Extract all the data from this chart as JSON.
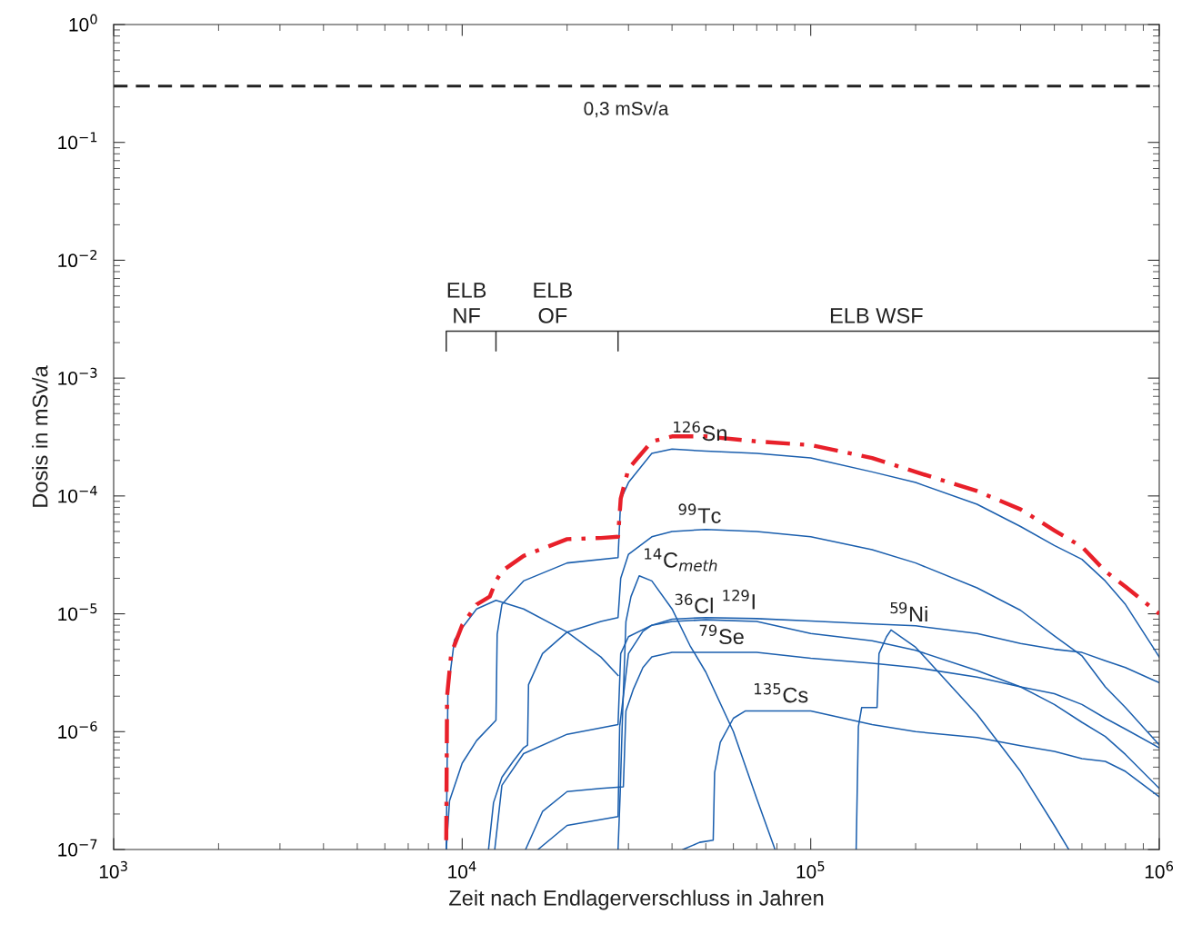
{
  "chart_data": {
    "type": "line",
    "xlabel": "Zeit nach Endlagerverschluss in Jahren",
    "ylabel": "Dosis in mSv/a",
    "log": "xy",
    "grid": false,
    "legend": false,
    "xlim": [
      1000,
      1000000
    ],
    "xticks": [
      {
        "value": 1000,
        "label": "10$^{3}$"
      },
      {
        "value": 10000,
        "label": "10$^{4}$"
      },
      {
        "value": 100000,
        "label": "10$^{5}$"
      },
      {
        "value": 1000000,
        "label": "10$^{6}$"
      }
    ],
    "ylim": [
      1e-07,
      1
    ],
    "yticks": [
      {
        "value": 1e-07,
        "label": "10$^{−7}$"
      },
      {
        "value": 1e-06,
        "label": "10$^{−6}$"
      },
      {
        "value": 1e-05,
        "label": "10$^{−5}$"
      },
      {
        "value": 0.0001,
        "label": "10$^{−4}$"
      },
      {
        "value": 0.001,
        "label": "10$^{−3}$"
      },
      {
        "value": 0.01,
        "label": "10$^{−2}$"
      },
      {
        "value": 0.1,
        "label": "10$^{−1}$"
      },
      {
        "value": 1,
        "label": "10$^{0}$"
      }
    ],
    "ref_lines": [
      {
        "axis": "y",
        "value": 0.3,
        "label": "0,3 mSv/a",
        "color": "#222222",
        "line_style": "dashed"
      }
    ],
    "annotations": [
      {
        "text": "ELB\nNF",
        "x": 9000,
        "y": 0.0025
      },
      {
        "text": "ELB\nOF",
        "x": 15900,
        "y": 0.0025
      },
      {
        "text": "ELB WSF",
        "x": 113000,
        "y": 0.0025
      },
      {
        "text": "$^{126}$Sn",
        "x": 40000,
        "y": 0.00025
      },
      {
        "text": "$^{99}$Tc",
        "x": 41500,
        "y": 5e-05
      },
      {
        "text": "$^{14}$C$_{meth}$",
        "x": 33000,
        "y": 2.1e-05
      },
      {
        "text": "$^{36}$Cl",
        "x": 40500,
        "y": 8.6e-06
      },
      {
        "text": "$^{129}$I",
        "x": 55400,
        "y": 9.3e-06
      },
      {
        "text": "$^{79}$Se",
        "x": 47600,
        "y": 4.7e-06
      },
      {
        "text": "$^{135}$Cs",
        "x": 68200,
        "y": 1.5e-06
      },
      {
        "text": "$^{59}$Ni",
        "x": 168000,
        "y": 7.3e-06
      }
    ],
    "series": [
      {
        "color": "#333333",
        "x": [
          9000,
          9000,
          12500,
          12500,
          12500,
          28000,
          28000,
          28000,
          1000000
        ],
        "values": [
          0.0017,
          0.0025,
          0.0025,
          0.0017,
          0.0025,
          0.0025,
          0.0017,
          0.0025,
          0.0025
        ]
      },
      {
        "color": "#1b5fae",
        "x": [
          9000,
          9100,
          9500,
          10000,
          11000,
          12500,
          15000,
          20000,
          25000,
          28000
        ],
        "values": [
          1e-07,
          2.2e-06,
          6e-06,
          7.6e-06,
          1.1e-05,
          1.3e-05,
          1.1e-05,
          7e-06,
          4.3e-06,
          3e-06
        ]
      },
      {
        "color": "#1b5fae",
        "x": [
          9000,
          9200,
          10000,
          11000,
          12500,
          12600,
          13000,
          15000,
          20000,
          28000,
          28500,
          30000,
          35000,
          40000,
          50000,
          70000,
          100000,
          150000,
          200000,
          300000,
          400000,
          500000,
          600000,
          700000,
          800000,
          1000000
        ],
        "values": [
          1e-07,
          2.6e-07,
          5.4e-07,
          8.4e-07,
          1.25e-06,
          6.7e-06,
          1.2e-05,
          1.9e-05,
          2.7e-05,
          3e-05,
          9.3e-05,
          0.00013,
          0.00023,
          0.00025,
          0.00024,
          0.00023,
          0.00021,
          0.00016,
          0.00013,
          8.5e-05,
          5.5e-05,
          3.8e-05,
          2.9e-05,
          1.9e-05,
          1.2e-05,
          4.3e-06
        ]
      },
      {
        "color": "#1b5fae",
        "x": [
          11900,
          12300,
          13000,
          14000,
          15000,
          15400,
          15500,
          17000,
          20000,
          25000,
          28000,
          28500,
          30000,
          35000,
          40000,
          50000,
          70000,
          100000,
          150000,
          200000,
          300000,
          400000,
          500000,
          600000,
          700000,
          800000,
          1000000
        ],
        "values": [
          1e-07,
          2.5e-07,
          4.1e-07,
          5.6e-07,
          7.3e-07,
          7.7e-07,
          2.5e-06,
          4.6e-06,
          7e-06,
          8.6e-06,
          9.3e-06,
          2e-05,
          3.2e-05,
          4.5e-05,
          5e-05,
          5.2e-05,
          5e-05,
          4.5e-05,
          3.5e-05,
          2.7e-05,
          1.66e-05,
          1.07e-05,
          6.5e-06,
          4.4e-06,
          2.4e-06,
          1.6e-06,
          7.7e-07
        ]
      },
      {
        "color": "#1b5fae",
        "x": [
          28000,
          28400,
          28800,
          29500,
          30500,
          32200,
          35000,
          40000,
          45000,
          50000,
          60000,
          70000,
          79000
        ],
        "values": [
          1e-07,
          3e-07,
          1.2e-06,
          8.6e-06,
          1.4e-05,
          2.1e-05,
          1.9e-05,
          1.1e-05,
          5.4e-06,
          3.2e-06,
          1e-06,
          2.7e-07,
          1e-07
        ]
      },
      {
        "color": "#1b5fae",
        "x": [
          12400,
          13000,
          15000,
          20000,
          28000,
          28500,
          30000,
          35000,
          40000,
          50000,
          70000,
          100000,
          150000,
          200000,
          300000,
          400000,
          500000,
          600000,
          700000,
          800000,
          1000000
        ],
        "values": [
          1e-07,
          3.5e-07,
          6.5e-07,
          9.5e-07,
          1.15e-06,
          4.6e-06,
          6.4e-06,
          8e-06,
          8.6e-06,
          8.9e-06,
          8.6e-06,
          6.8e-06,
          5.9e-06,
          4.9e-06,
          3.3e-06,
          2.4e-06,
          1.7e-06,
          1.2e-06,
          9.1e-07,
          6.4e-07,
          3.3e-07
        ]
      },
      {
        "color": "#1b5fae",
        "x": [
          16500,
          20000,
          28000,
          28300,
          30000,
          33000,
          35000,
          40000,
          50000,
          70000,
          100000,
          150000,
          200000,
          300000,
          400000,
          500000,
          600000,
          700000,
          800000,
          1000000
        ],
        "values": [
          1e-07,
          1.6e-07,
          1.9e-07,
          1.1e-06,
          4.6e-06,
          7.1e-06,
          8e-06,
          9e-06,
          9.3e-06,
          9.1e-06,
          8.7e-06,
          8.2e-06,
          7.9e-06,
          6.8e-06,
          5.6e-06,
          5e-06,
          4.7e-06,
          4e-06,
          3.5e-06,
          2.6e-06
        ]
      },
      {
        "color": "#1b5fae",
        "x": [
          15200,
          17000,
          20000,
          25000,
          29000,
          29500,
          31000,
          33000,
          35000,
          40000,
          50000,
          70000,
          100000,
          150000,
          200000,
          300000,
          400000,
          500000,
          600000,
          700000,
          800000,
          1000000
        ],
        "values": [
          1e-07,
          2.1e-07,
          3.1e-07,
          3.3e-07,
          3.4e-07,
          1.5e-06,
          2.3e-06,
          3.5e-06,
          4.3e-06,
          4.7e-06,
          4.7e-06,
          4.7e-06,
          4.2e-06,
          3.8e-06,
          3.5e-06,
          2.9e-06,
          2.4e-06,
          2.1e-06,
          1.7e-06,
          1.3e-06,
          1.05e-06,
          7.3e-07
        ]
      },
      {
        "color": "#1b5fae",
        "x": [
          43000,
          48000,
          52500,
          53000,
          55000,
          60000,
          65000,
          100000,
          150000,
          200000,
          300000,
          400000,
          500000,
          600000,
          700000,
          800000,
          1000000
        ],
        "values": [
          1e-07,
          1.15e-07,
          1.2e-07,
          4.5e-07,
          8.1e-07,
          1.3e-06,
          1.5e-06,
          1.5e-06,
          1.15e-06,
          1e-06,
          8.9e-07,
          7.6e-07,
          6.8e-07,
          5.9e-07,
          5.6e-07,
          4.6e-07,
          2.8e-07
        ]
      },
      {
        "color": "#1b5fae",
        "x": [
          135000,
          137000,
          140000,
          150000,
          155000,
          157000,
          165000,
          170000,
          200000,
          300000,
          400000,
          500000,
          550000
        ],
        "values": [
          1e-07,
          1.1e-06,
          1.6e-06,
          1.6e-06,
          1.6e-06,
          4.6e-06,
          6.4e-06,
          7.3e-06,
          5.2e-06,
          1.4e-06,
          4.6e-07,
          1.6e-07,
          1e-07
        ]
      },
      {
        "color": "#e8202a",
        "line_style": "dashdot",
        "x": [
          9000,
          9050,
          9300,
          10000,
          11000,
          12000,
          12500,
          13000,
          15000,
          20000,
          25000,
          28000,
          28500,
          30000,
          35000,
          40000,
          50000,
          70000,
          100000,
          150000,
          200000,
          300000,
          400000,
          500000,
          600000,
          700000,
          800000,
          1000000
        ],
        "values": [
          1.2e-07,
          2e-06,
          4.6e-06,
          8e-06,
          1.2e-05,
          1.4e-05,
          1.9e-05,
          2.3e-05,
          3.1e-05,
          4.3e-05,
          4.4e-05,
          4.5e-05,
          9.5e-05,
          0.00017,
          0.00029,
          0.00032,
          0.00032,
          0.00029,
          0.00027,
          0.00021,
          0.00016,
          0.00011,
          7.7e-05,
          5.1e-05,
          3.7e-05,
          2.3e-05,
          1.7e-05,
          1e-05
        ]
      }
    ]
  }
}
